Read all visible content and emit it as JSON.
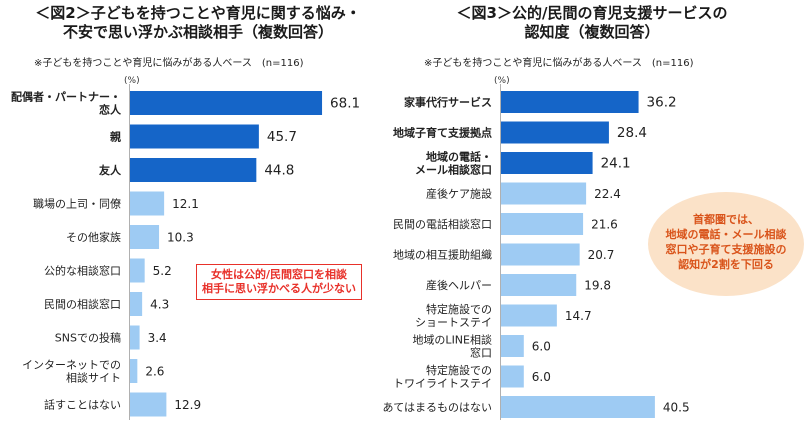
{
  "left": {
    "title": "＜図2＞子どもを持つことや育児に関する悩み・\n不安で思い浮かぶ相談相手（複数回答）",
    "note": "※子どもを持つことや育児に悩みがある人ベース　(n=116)",
    "unit": "(%)",
    "callout": "女性は公的/民間窓口を相談\n相手に思い浮かべる人が少ない"
  },
  "right": {
    "title": "＜図3＞公的/民間の育児支援サービスの\n認知度（複数回答）",
    "note": "※子どもを持つことや育児に悩みがある人ベース　(n=116)",
    "unit": "(%)",
    "bubble": "首都圏では、\n地域の電話・メール相談\n窓口や子育て支援施設の\n認知が2割を下回る"
  },
  "colors": {
    "highlight": "#1565c8",
    "normal": "#9ecbf3"
  },
  "chart_data": [
    {
      "type": "bar",
      "orientation": "horizontal",
      "title": "＜図2＞子どもを持つことや育児に関する悩み・不安で思い浮かぶ相談相手（複数回答）",
      "unit": "%",
      "categories": [
        "配偶者・パートナー・\n恋人",
        "親",
        "友人",
        "職場の上司・同僚",
        "その他家族",
        "公的な相談窓口",
        "民間の相談窓口",
        "SNSでの投稿",
        "インターネットでの\n相談サイト",
        "話すことはない"
      ],
      "values": [
        68.1,
        45.7,
        44.8,
        12.1,
        10.3,
        5.2,
        4.3,
        3.4,
        2.6,
        12.9
      ],
      "highlighted": [
        true,
        true,
        true,
        false,
        false,
        false,
        false,
        false,
        false,
        false
      ],
      "display_values": [
        "68.1",
        "45.7",
        "44.8",
        "12.1",
        "10.3",
        "5.2",
        "4.3",
        "3.4",
        "2.6",
        "12.9"
      ]
    },
    {
      "type": "bar",
      "orientation": "horizontal",
      "title": "＜図3＞公的/民間の育児支援サービスの認知度（複数回答）",
      "unit": "%",
      "categories": [
        "家事代行サービス",
        "地域子育て支援拠点",
        "地域の電話・\nメール相談窓口",
        "産後ケア施設",
        "民間の電話相談窓口",
        "地域の相互援助組織",
        "産後ヘルパー",
        "特定施設での\nショートステイ",
        "地域のLINE相談\n窓口",
        "特定施設での\nトワイライトステイ",
        "あてはまるものはない"
      ],
      "values": [
        36.2,
        28.4,
        24.1,
        22.4,
        21.6,
        20.7,
        19.8,
        14.7,
        6.0,
        6.0,
        40.5
      ],
      "highlighted": [
        true,
        true,
        true,
        false,
        false,
        false,
        false,
        false,
        false,
        false,
        false
      ],
      "display_values": [
        "36.2",
        "28.4",
        "24.1",
        "22.4",
        "21.6",
        "20.7",
        "19.8",
        "14.7",
        "6.0",
        "6.0",
        "40.5"
      ]
    }
  ]
}
